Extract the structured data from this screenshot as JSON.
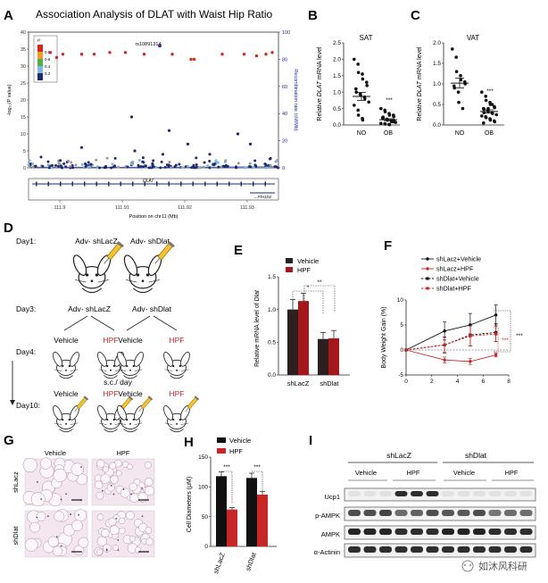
{
  "panel_labels": {
    "A": "A",
    "B": "B",
    "C": "C",
    "D": "D",
    "E": "E",
    "F": "F",
    "G": "G",
    "H": "H",
    "I": "I"
  },
  "panel_a": {
    "title": "Association Analysis of DLAT with Waist Hip Ratio",
    "snp_label": "rs10891314",
    "ylabel_left": "-log₁₀(P value)",
    "ylabel_right": "Recombination rate (cM/Mb)",
    "legend_title": "r²",
    "legend_items": [
      "0.8",
      "0.6",
      "0.4",
      "0.2"
    ],
    "legend_colors": [
      "#d7261e",
      "#f39a2b",
      "#4fae4a",
      "#7fb9d9",
      "#1e2a74"
    ],
    "gene_dlat": "DLAT→",
    "gene_pih1d2": "←PIH1D2",
    "xlabel": "Position on chr11 (Mb)",
    "chart_data": {
      "type": "scatter",
      "title": "Association Analysis of DLAT with Waist Hip Ratio",
      "xlabel": "Position on chr11 (Mb)",
      "ylabel": "-log10(P value)",
      "y2label": "Recombination rate (cM/Mb)",
      "x_ticks": [
        "111.9",
        "111.91",
        "111.92",
        "111.93"
      ],
      "y_ticks": [
        "0",
        "5",
        "10",
        "15",
        "20",
        "25",
        "30",
        "35",
        "40"
      ],
      "y2_ticks": [
        "0",
        "20",
        "40",
        "60",
        "80",
        "100"
      ],
      "ylim": [
        0,
        40
      ],
      "xlim": [
        111.895,
        111.935
      ],
      "high_ld_points": [
        [
          111.8985,
          34
        ],
        [
          111.8995,
          32.5
        ],
        [
          111.9005,
          33.5
        ],
        [
          111.9035,
          33.5
        ],
        [
          111.9055,
          33.5
        ],
        [
          111.908,
          34
        ],
        [
          111.9105,
          34
        ],
        [
          111.9135,
          33.5
        ],
        [
          111.918,
          33.5
        ],
        [
          111.921,
          32
        ],
        [
          111.9215,
          32
        ],
        [
          111.926,
          33.5
        ],
        [
          111.9295,
          33.5
        ],
        [
          111.9315,
          33
        ],
        [
          111.933,
          33.5
        ],
        [
          111.934,
          34
        ]
      ],
      "lead_snp": [
        111.916,
        36
      ],
      "low_ld_points": [
        [
          111.9115,
          15
        ],
        [
          111.9175,
          11
        ],
        [
          111.9285,
          10
        ],
        [
          111.9035,
          6
        ],
        [
          111.912,
          5
        ],
        [
          111.9205,
          7
        ],
        [
          111.9165,
          4
        ],
        [
          111.924,
          4
        ],
        [
          111.9305,
          7
        ]
      ],
      "recombination_line": [
        [
          111.895,
          0.5
        ],
        [
          111.905,
          0.5
        ],
        [
          111.915,
          0.4
        ],
        [
          111.925,
          0.6
        ],
        [
          111.935,
          0.8
        ]
      ]
    }
  },
  "panel_b": {
    "title": "SAT",
    "ylabel_pre": "Relative ",
    "ylabel_gene": "DLAT",
    "ylabel_post": " mRNA level",
    "significance": "***",
    "chart_data": {
      "type": "scatter",
      "title": "SAT",
      "categories": [
        "NO",
        "OB"
      ],
      "ylim": [
        0,
        2.5
      ],
      "y_ticks": [
        "0.0",
        "0.5",
        "1.0",
        "1.5",
        "2.0",
        "2.5"
      ],
      "groups": [
        {
          "name": "NO",
          "mean": 0.87,
          "sem": 0.12,
          "values": [
            2.0,
            1.85,
            1.6,
            1.55,
            1.4,
            1.3,
            1.2,
            1.1,
            1.0,
            0.95,
            0.9,
            0.85,
            0.8,
            0.7,
            0.6,
            0.45,
            0.3,
            0.2,
            0.15
          ]
        },
        {
          "name": "OB",
          "mean": 0.16,
          "sem": 0.03,
          "values": [
            0.5,
            0.45,
            0.4,
            0.35,
            0.3,
            0.3,
            0.25,
            0.22,
            0.2,
            0.18,
            0.15,
            0.12,
            0.1,
            0.08,
            0.05,
            0.04,
            0.03,
            0.02,
            0.01,
            0.1,
            0.14,
            0.2,
            0.24
          ]
        }
      ]
    }
  },
  "panel_c": {
    "title": "VAT",
    "ylabel_pre": "Relative ",
    "ylabel_gene": "DLAT",
    "ylabel_post": " mRNA level",
    "significance": "***",
    "chart_data": {
      "type": "scatter",
      "title": "VAT",
      "categories": [
        "NO",
        "OB"
      ],
      "ylim": [
        0,
        2.0
      ],
      "y_ticks": [
        "0.0",
        "0.5",
        "1.0",
        "1.5",
        "2.0"
      ],
      "groups": [
        {
          "name": "NO",
          "mean": 1.02,
          "sem": 0.12,
          "values": [
            1.85,
            1.65,
            1.3,
            1.2,
            1.1,
            1.05,
            1.0,
            0.95,
            0.9,
            0.8,
            0.55,
            0.4
          ]
        },
        {
          "name": "OB",
          "mean": 0.33,
          "sem": 0.04,
          "values": [
            0.8,
            0.7,
            0.6,
            0.55,
            0.5,
            0.45,
            0.42,
            0.4,
            0.38,
            0.35,
            0.33,
            0.3,
            0.28,
            0.25,
            0.22,
            0.2,
            0.18,
            0.15,
            0.12,
            0.1,
            0.08,
            0.05,
            0.3,
            0.35,
            0.4,
            0.5
          ]
        }
      ]
    }
  },
  "panel_d": {
    "day1": "Day1:",
    "day3": "Day3:",
    "day4": "Day4:",
    "day10": "Day10:",
    "adv_shlacz_1": "Adv- shLacZ",
    "adv_shdlat_1": "Adv- shDlat",
    "adv_shlacz_2": "Adv- shLacZ",
    "adv_shdlat_2": "Adv- shDlat",
    "vehicle": "Vehicle",
    "hpf": "HPF",
    "sc_day": "s.c./ day",
    "hpf_color": "#c62828"
  },
  "panel_e": {
    "legend": [
      "Vehicle",
      "HPF"
    ],
    "ylabel_pre": "Relative mRNA level of ",
    "ylabel_gene": "Dlat",
    "sig_star": "*",
    "sig_double": "**",
    "colors": [
      "#2b1f1f",
      "#a6171b"
    ],
    "chart_data": {
      "type": "bar",
      "categories": [
        "shLacZ",
        "shDlat"
      ],
      "ylim": [
        0,
        1.5
      ],
      "y_ticks": [
        "0.0",
        "0.5",
        "1.0",
        "1.5"
      ],
      "series": [
        {
          "name": "Vehicle",
          "values": [
            1.0,
            0.55
          ],
          "errors": [
            0.15,
            0.1
          ]
        },
        {
          "name": "HPF",
          "values": [
            1.13,
            0.56
          ],
          "errors": [
            0.12,
            0.12
          ]
        }
      ]
    }
  },
  "panel_f": {
    "legend": [
      "shLacz+Vehicle",
      "shLacz+HPF",
      "shDlat+Vehicle",
      "shDlat+HPF"
    ],
    "ylabel": "Body Weight Gain (%)",
    "sig_inner": "***",
    "sig_outer": "***",
    "chart_data": {
      "type": "line",
      "x": [
        0,
        3,
        5,
        7
      ],
      "xlim": [
        0,
        8
      ],
      "x_ticks": [
        "0",
        "2",
        "4",
        "6",
        "8"
      ],
      "ylim": [
        -5,
        10
      ],
      "y_ticks": [
        "-5",
        "0",
        "5",
        "10"
      ],
      "series": [
        {
          "name": "shLacz+Vehicle",
          "values": [
            0,
            3.8,
            5,
            7
          ],
          "errors": [
            0,
            1.8,
            2.3,
            2.0
          ],
          "color": "#111111",
          "dashed": false
        },
        {
          "name": "shLacz+HPF",
          "values": [
            0,
            -2,
            -2.3,
            -1
          ],
          "errors": [
            0,
            0.6,
            0.6,
            0.4
          ],
          "color": "#c62828",
          "dashed": false
        },
        {
          "name": "shDlat+Vehicle",
          "values": [
            0,
            1,
            3,
            3.5
          ],
          "errors": [
            0,
            1.6,
            2.2,
            1.8
          ],
          "color": "#111111",
          "dashed": true
        },
        {
          "name": "shDlat+HPF",
          "values": [
            0,
            1,
            2.8,
            3.2
          ],
          "errors": [
            0,
            1.5,
            2.0,
            1.5
          ],
          "color": "#c62828",
          "dashed": true
        }
      ]
    }
  },
  "panel_g": {
    "vehicle": "Vehicle",
    "hpf": "HPF",
    "row_lacz": "shLacz",
    "row_dlat": "shDlat"
  },
  "panel_h": {
    "legend": [
      "Vehicle",
      "HPF"
    ],
    "ylabel": "Cell Diameters (μM)",
    "sig_1": "***",
    "sig_2": "***",
    "colors": [
      "#111111",
      "#c62828"
    ],
    "chart_data": {
      "type": "bar",
      "categories": [
        "shLacZ",
        "shDlat"
      ],
      "ylim": [
        0,
        150
      ],
      "y_ticks": [
        "0",
        "50",
        "100",
        "150"
      ],
      "series": [
        {
          "name": "Vehicle",
          "values": [
            118,
            115
          ],
          "errors": [
            7,
            8
          ]
        },
        {
          "name": "HPF",
          "values": [
            62,
            87
          ],
          "errors": [
            3,
            5
          ]
        }
      ]
    }
  },
  "panel_i": {
    "group_lacz": "shLacZ",
    "group_dlat": "shDlat",
    "vehicle_1": "Vehicle",
    "hpf_1": "HPF",
    "vehicle_2": "Vehicle",
    "hpf_2": "HPF",
    "rows": [
      "Ucp1",
      "p-AMPK",
      "AMPK",
      "α-Actinin"
    ]
  },
  "watermark": "如沐风科研"
}
